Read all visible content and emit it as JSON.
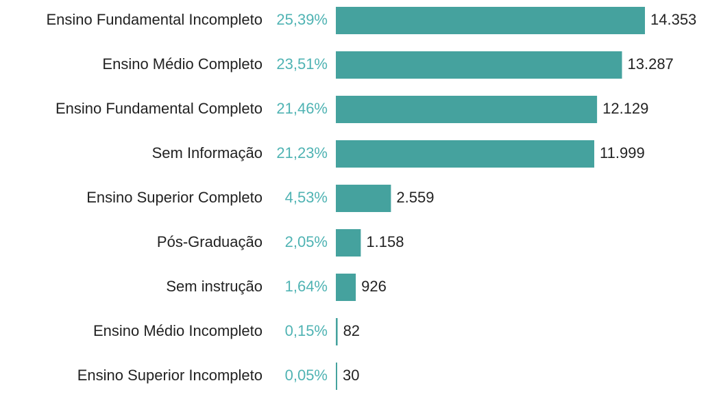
{
  "chart_data": {
    "type": "bar",
    "orientation": "horizontal",
    "categories": [
      "Ensino Fundamental Incompleto",
      "Ensino Médio Completo",
      "Ensino Fundamental Completo",
      "Sem Informação",
      "Ensino Superior Completo",
      "Pós-Graduação",
      "Sem instrução",
      "Ensino Médio Incompleto",
      "Ensino Superior Incompleto"
    ],
    "values": [
      14353,
      13287,
      12129,
      11999,
      2559,
      1158,
      926,
      82,
      30
    ],
    "value_labels": [
      "14.353",
      "13.287",
      "12.129",
      "11.999",
      "2.559",
      "1.158",
      "926",
      "82",
      "30"
    ],
    "shares": [
      25.39,
      23.51,
      21.46,
      21.23,
      4.53,
      2.05,
      1.64,
      0.15,
      0.05
    ],
    "share_labels": [
      "25,39%",
      "23,51%",
      "21,46%",
      "21,23%",
      "4,53%",
      "2,05%",
      "1,64%",
      "0,15%",
      "0,05%"
    ],
    "color": "#45a29e",
    "share_color": "#4fb3b3"
  }
}
